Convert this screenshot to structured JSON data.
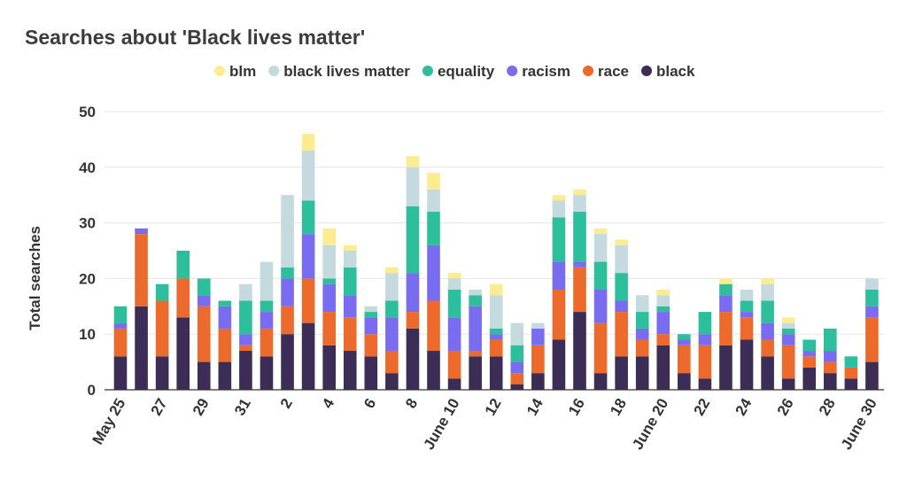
{
  "chart_data": {
    "type": "bar",
    "stacked": true,
    "title": "Searches about 'Black lives matter'",
    "ylabel": "Total searches",
    "xlabel": "",
    "ylim": [
      0,
      50
    ],
    "yticks": [
      "0",
      "10",
      "20",
      "30",
      "40",
      "50"
    ],
    "grid": true,
    "legend_position": "top",
    "x_tick_labels": [
      {
        "index": 0,
        "label": "May 25"
      },
      {
        "index": 2,
        "label": "27"
      },
      {
        "index": 4,
        "label": "29"
      },
      {
        "index": 6,
        "label": "31"
      },
      {
        "index": 8,
        "label": "2"
      },
      {
        "index": 10,
        "label": "4"
      },
      {
        "index": 12,
        "label": "6"
      },
      {
        "index": 14,
        "label": "8"
      },
      {
        "index": 16,
        "label": "June 10"
      },
      {
        "index": 18,
        "label": "12"
      },
      {
        "index": 20,
        "label": "14"
      },
      {
        "index": 22,
        "label": "16"
      },
      {
        "index": 24,
        "label": "18"
      },
      {
        "index": 26,
        "label": "June 20"
      },
      {
        "index": 28,
        "label": "22"
      },
      {
        "index": 30,
        "label": "24"
      },
      {
        "index": 32,
        "label": "26"
      },
      {
        "index": 34,
        "label": "28"
      },
      {
        "index": 36,
        "label": "June 30"
      }
    ],
    "categories": [
      "May 25",
      "May 26",
      "May 27",
      "May 28",
      "May 29",
      "May 30",
      "May 31",
      "Jun 1",
      "Jun 2",
      "Jun 3",
      "Jun 4",
      "Jun 5",
      "Jun 6",
      "Jun 7",
      "Jun 8",
      "Jun 9",
      "Jun 10",
      "Jun 11",
      "Jun 12",
      "Jun 13",
      "Jun 14",
      "Jun 15",
      "Jun 16",
      "Jun 17",
      "Jun 18",
      "Jun 19",
      "Jun 20",
      "Jun 21",
      "Jun 22",
      "Jun 23",
      "Jun 24",
      "Jun 25",
      "Jun 26",
      "Jun 27",
      "Jun 28",
      "Jun 29",
      "Jun 30"
    ],
    "series": [
      {
        "name": "black",
        "color": "#3b2d55",
        "values": [
          6,
          15,
          6,
          13,
          5,
          5,
          7,
          6,
          10,
          12,
          8,
          7,
          6,
          3,
          11,
          7,
          2,
          6,
          6,
          1,
          3,
          9,
          14,
          3,
          6,
          6,
          8,
          3,
          2,
          8,
          9,
          6,
          2,
          4,
          3,
          2,
          5
        ]
      },
      {
        "name": "race",
        "color": "#ec6a2c",
        "values": [
          5,
          13,
          10,
          7,
          10,
          6,
          1,
          5,
          5,
          8,
          6,
          6,
          4,
          4,
          3,
          9,
          5,
          1,
          3,
          2,
          5,
          9,
          8,
          9,
          8,
          3,
          2,
          5,
          6,
          6,
          4,
          3,
          6,
          2,
          2,
          2,
          8
        ]
      },
      {
        "name": "racism",
        "color": "#7a6cf0",
        "values": [
          1,
          1,
          0,
          0,
          2,
          4,
          2,
          3,
          5,
          8,
          5,
          4,
          3,
          6,
          7,
          10,
          6,
          8,
          1,
          2,
          3,
          5,
          1,
          6,
          2,
          2,
          4,
          1,
          2,
          3,
          1,
          3,
          2,
          1,
          2,
          0,
          2
        ]
      },
      {
        "name": "equality",
        "color": "#2dbf9b",
        "values": [
          3,
          0,
          3,
          5,
          3,
          1,
          6,
          2,
          2,
          6,
          1,
          5,
          1,
          3,
          12,
          6,
          5,
          2,
          1,
          3,
          0,
          8,
          9,
          5,
          5,
          3,
          1,
          1,
          4,
          2,
          2,
          4,
          1,
          2,
          4,
          2,
          3
        ]
      },
      {
        "name": "black lives matter",
        "color": "#c4dadf",
        "values": [
          0,
          0,
          0,
          0,
          0,
          0,
          3,
          7,
          13,
          9,
          6,
          3,
          1,
          5,
          7,
          4,
          2,
          1,
          6,
          4,
          1,
          3,
          3,
          5,
          5,
          3,
          2,
          0,
          0,
          0,
          2,
          3,
          1,
          0,
          0,
          0,
          2
        ]
      },
      {
        "name": "blm",
        "color": "#fbec8f",
        "values": [
          0,
          0,
          0,
          0,
          0,
          0,
          0,
          0,
          0,
          3,
          3,
          1,
          0,
          1,
          2,
          3,
          1,
          0,
          2,
          0,
          0,
          1,
          1,
          1,
          1,
          0,
          1,
          0,
          0,
          1,
          0,
          1,
          1,
          0,
          0,
          0,
          0
        ]
      }
    ],
    "legend_order": [
      "blm",
      "black lives matter",
      "equality",
      "racism",
      "race",
      "black"
    ]
  }
}
